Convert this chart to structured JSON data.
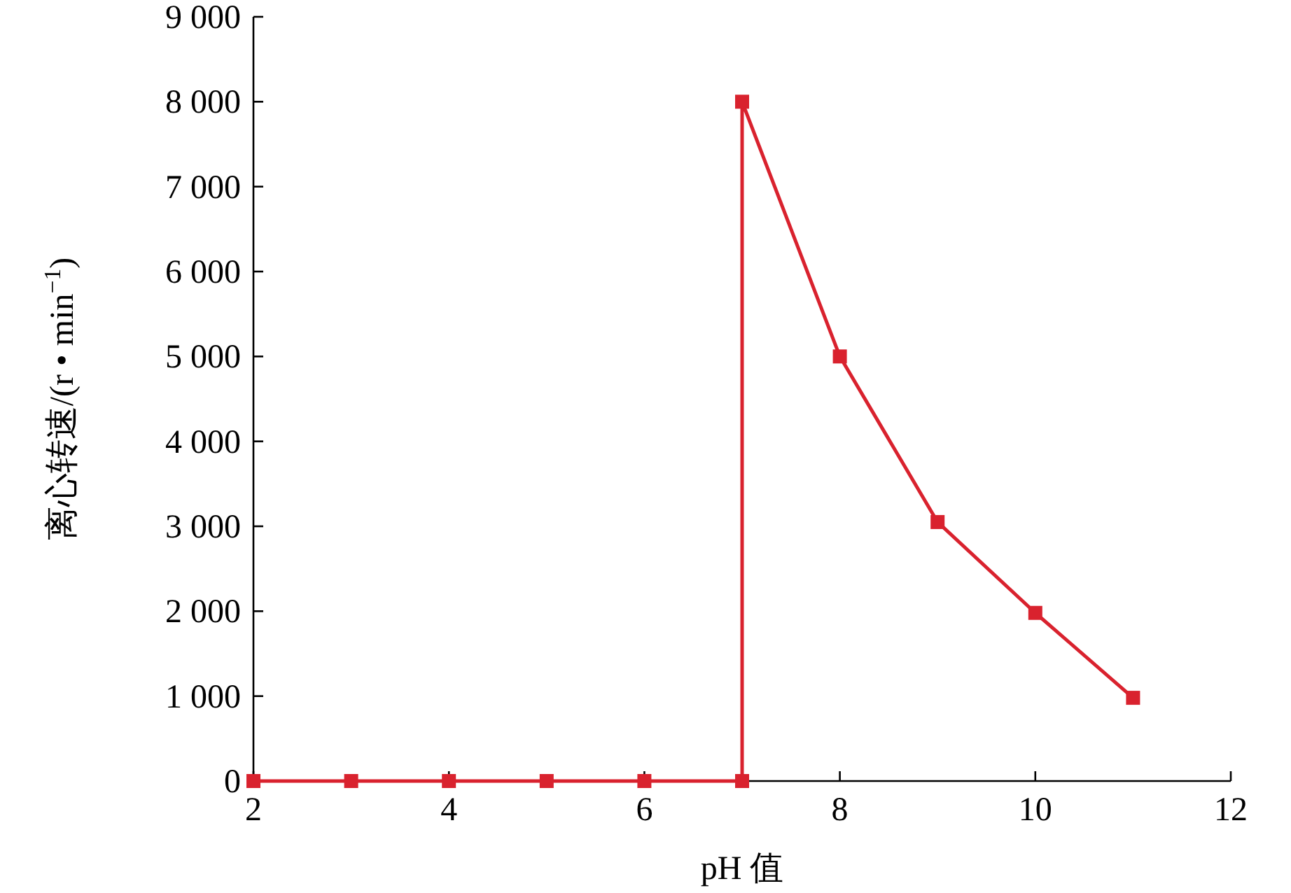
{
  "chart_data": {
    "type": "line",
    "xlabel": "pH 值",
    "ylabel": "离心转速/(r • min$^{−1}$)",
    "x": [
      2,
      3,
      4,
      5,
      6,
      7,
      7,
      8,
      9,
      10,
      11
    ],
    "series": [
      {
        "color": "#d9222e",
        "values": [
          0,
          0,
          0,
          0,
          0,
          0,
          8000,
          5000,
          3050,
          1980,
          980
        ]
      }
    ],
    "xlim": [
      2,
      12
    ],
    "xticks": [
      2,
      4,
      6,
      8,
      10,
      12
    ],
    "ylim": [
      0,
      9000
    ],
    "yticks": [
      0,
      {
        "value": 1000,
        "label": "1 000"
      },
      {
        "value": 2000,
        "label": "2 000"
      },
      {
        "value": 3000,
        "label": "3 000"
      },
      {
        "value": 4000,
        "label": "4 000"
      },
      {
        "value": 5000,
        "label": "5 000"
      },
      {
        "value": 6000,
        "label": "6 000"
      },
      {
        "value": 7000,
        "label": "7 000"
      },
      {
        "value": 8000,
        "label": "8 000"
      },
      {
        "value": 9000,
        "label": "9 000"
      }
    ],
    "grid": false,
    "marker": "square",
    "line_style": "solid"
  }
}
